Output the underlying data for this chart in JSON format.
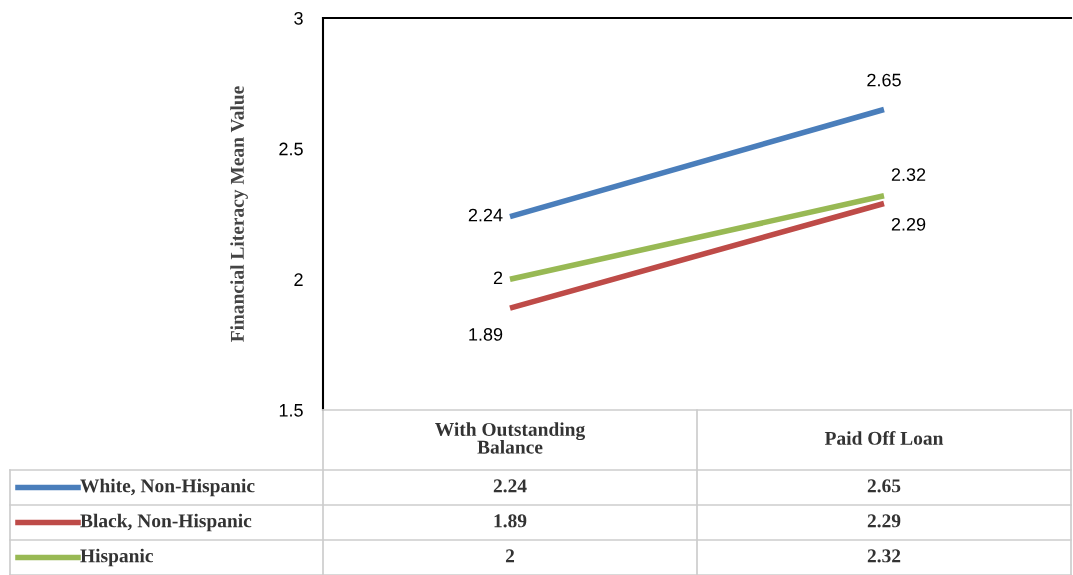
{
  "chart_data": {
    "type": "line",
    "ylabel": "Financial Literacy Mean Value",
    "categories": [
      "With Outstanding\nBalance",
      "Paid Off Loan"
    ],
    "series": [
      {
        "name": "White, Non-Hispanic",
        "color": "#4a7ebb",
        "values": [
          2.24,
          2.65
        ],
        "value_labels": [
          "2.24",
          "2.65"
        ]
      },
      {
        "name": "Black, Non-Hispanic",
        "color": "#be4b48",
        "values": [
          1.89,
          2.29
        ],
        "value_labels": [
          "1.89",
          "2.29"
        ]
      },
      {
        "name": "Hispanic",
        "color": "#98b954",
        "values": [
          2,
          2.32
        ],
        "value_labels": [
          "2",
          "2.32"
        ]
      }
    ],
    "ylim": [
      1.5,
      3
    ],
    "yticks": [
      1.5,
      2,
      2.5,
      3
    ],
    "grid": false,
    "legend": "bottom",
    "annotations": [
      "2.24",
      "2.65",
      "1.89",
      "2.29",
      "2",
      "2.32"
    ],
    "marker": "none",
    "line_style": "solid"
  }
}
